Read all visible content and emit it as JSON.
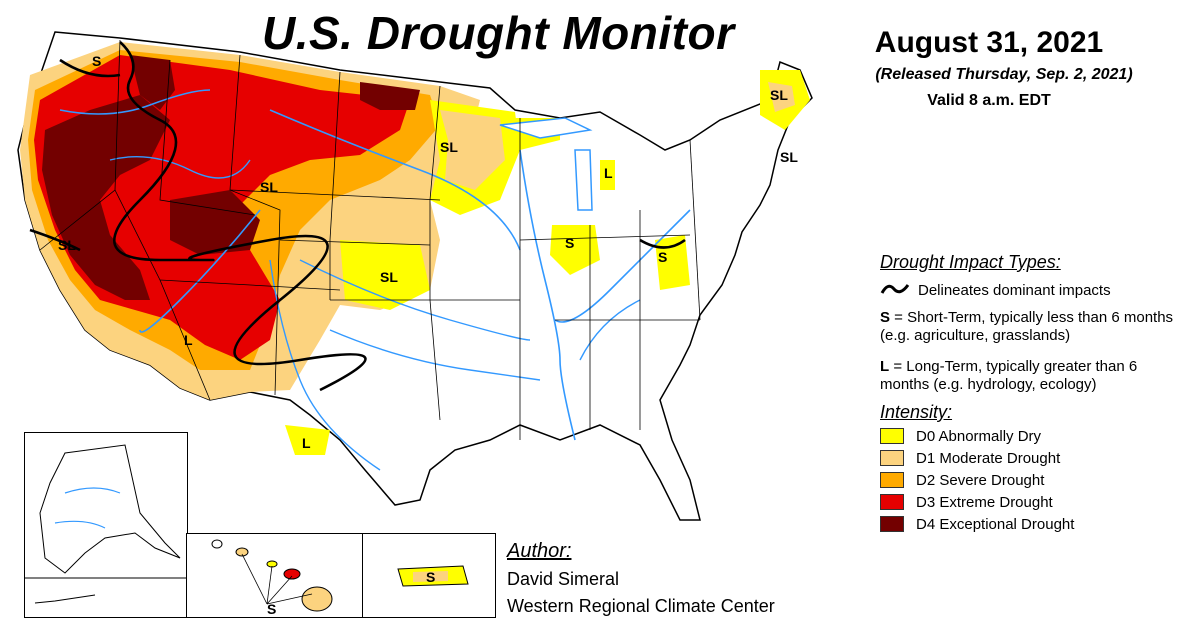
{
  "header": {
    "title": "U.S. Drought Monitor",
    "date": "August 31, 2021",
    "released": "(Released Thursday, Sep. 2, 2021)",
    "valid": "Valid 8 a.m. EDT"
  },
  "impact_legend": {
    "heading": "Drought Impact Types:",
    "dominant_symbol": "~",
    "dominant_text": "Delineates dominant impacts",
    "short_code": "S",
    "short_text": " = Short-Term, typically less than 6 months (e.g. agriculture, grasslands)",
    "long_code": "L",
    "long_text": " = Long-Term, typically greater than 6 months (e.g. hydrology, ecology)"
  },
  "intensity_legend": {
    "heading": "Intensity:",
    "items": [
      {
        "label": "D0 Abnormally Dry",
        "color": "#ffff00"
      },
      {
        "label": "D1 Moderate Drought",
        "color": "#fcd37f"
      },
      {
        "label": "D2 Severe Drought",
        "color": "#ffaa00"
      },
      {
        "label": "D3 Extreme Drought",
        "color": "#e60000"
      },
      {
        "label": "D4 Exceptional Drought",
        "color": "#730000"
      }
    ]
  },
  "author": {
    "heading": "Author:",
    "name": "David Simeral",
    "organization": "Western Regional Climate Center"
  },
  "map_labels": {
    "pnw": "S",
    "nw_sl": "SL",
    "ca_sl": "SL",
    "az_l": "L",
    "tx_l": "L",
    "plains_sl": "SL",
    "wy_sl": "SL",
    "nd_sl": "SL",
    "il_s": "S",
    "mi_l": "L",
    "va_s": "S",
    "me_sl": "SL",
    "ne_sl": "SL",
    "hi_s": "S",
    "pr_s": "S"
  },
  "colors": {
    "water": "#3399ff",
    "border": "#000000"
  }
}
